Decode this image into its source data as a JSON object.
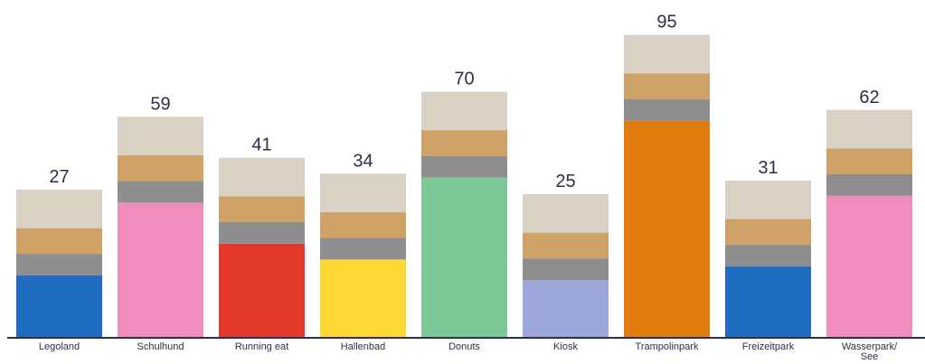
{
  "chart_data": {
    "type": "bar",
    "categories": [
      "Legoland",
      "Schulhund",
      "Running eat",
      "Hallenbad",
      "Donuts",
      "Kiosk",
      "Trampolinpark",
      "Freizeitpark",
      "Wasserpark/ See"
    ],
    "values": [
      27,
      59,
      41,
      34,
      70,
      25,
      95,
      31,
      62
    ],
    "colors": [
      "#1f6cc0",
      "#ef8dbd",
      "#e2392a",
      "#fdd835",
      "#7dc897",
      "#9ea7d9",
      "#e07c10",
      "#1f6cc0",
      "#ef8dbd"
    ],
    "ylim": [
      0,
      100
    ]
  }
}
